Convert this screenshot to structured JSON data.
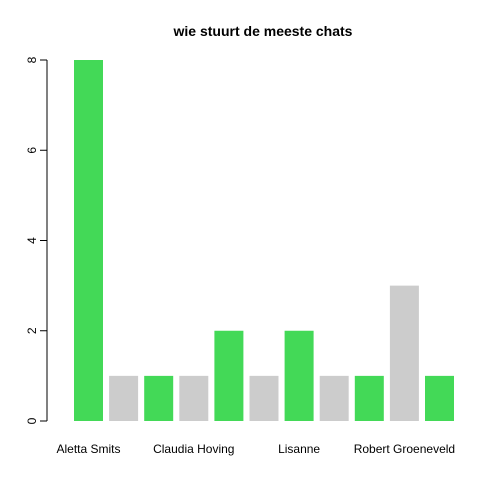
{
  "chart_data": {
    "type": "bar",
    "title": "wie stuurt de meeste chats",
    "xlabel": "",
    "ylabel": "",
    "ylim": [
      0,
      8
    ],
    "y_ticks": [
      0,
      2,
      4,
      6,
      8
    ],
    "values": [
      8,
      1,
      1,
      1,
      2,
      1,
      2,
      1,
      1,
      3,
      1
    ],
    "bar_colors": [
      "#43d957",
      "#cccccc",
      "#43d957",
      "#cccccc",
      "#43d957",
      "#cccccc",
      "#43d957",
      "#cccccc",
      "#43d957",
      "#cccccc",
      "#43d957"
    ],
    "visible_labels": [
      {
        "index": 0,
        "label": "Aletta Smits"
      },
      {
        "index": 3,
        "label": "Claudia Hoving"
      },
      {
        "index": 6,
        "label": "Lisanne"
      },
      {
        "index": 9,
        "label": "Robert Groeneveld"
      }
    ],
    "grid": false,
    "legend": "none"
  }
}
